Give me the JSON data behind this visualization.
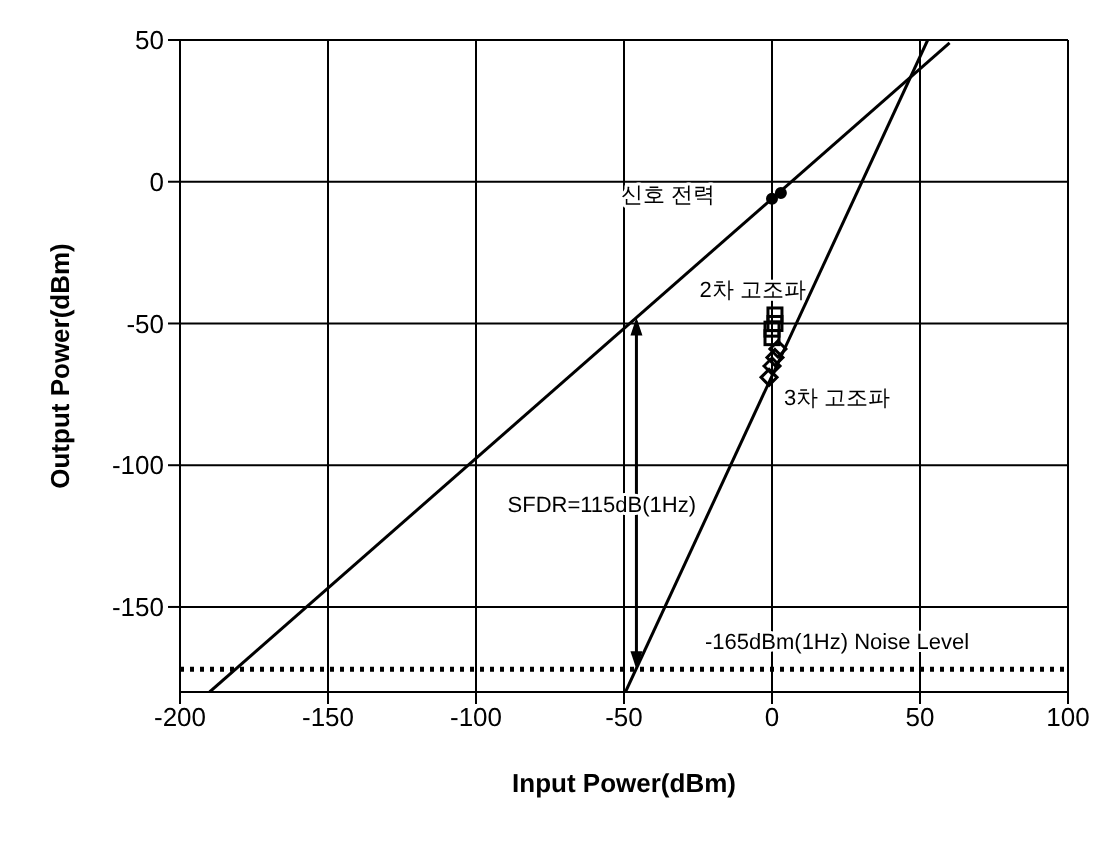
{
  "chart_data": {
    "type": "line",
    "xlabel": "Input Power(dBm)",
    "ylabel": "Output Power(dBm)",
    "xlim": [
      -200,
      100
    ],
    "xticks": [
      -200,
      -150,
      -100,
      -50,
      0,
      50,
      100
    ],
    "ylim": [
      -180,
      50
    ],
    "yticks": [
      -150,
      -100,
      -50,
      0,
      50
    ],
    "grid": true,
    "series": [
      {
        "color": "#000000",
        "x": [
          -190,
          60
        ],
        "values": [
          -180,
          49
        ],
        "marker": "none"
      },
      {
        "color": "#000000",
        "x": [
          -49.5,
          52.6
        ],
        "values": [
          -180,
          50
        ],
        "marker": "none"
      },
      {
        "type": "scatter",
        "color": "#000000",
        "x": [
          0,
          3
        ],
        "values": [
          -6,
          -4
        ],
        "marker": "circle"
      },
      {
        "type": "scatter",
        "color": "#000000",
        "x": [
          1,
          1,
          0,
          0
        ],
        "values": [
          -47,
          -50,
          -52,
          -55
        ],
        "marker": "square"
      },
      {
        "type": "scatter",
        "color": "#000000",
        "x": [
          2,
          1,
          0,
          -1
        ],
        "values": [
          -59,
          -62,
          -65,
          -69
        ],
        "marker": "diamond"
      }
    ],
    "ref_lines": [
      {
        "axis": "y",
        "value": -172,
        "color": "#000000",
        "line_style": "dotted"
      }
    ],
    "annotations": [
      "신호 전력",
      "2차 고조파",
      "3차 고조파",
      "SFDR=115dB(1Hz)",
      "-165dBm(1Hz) Noise Level"
    ]
  }
}
